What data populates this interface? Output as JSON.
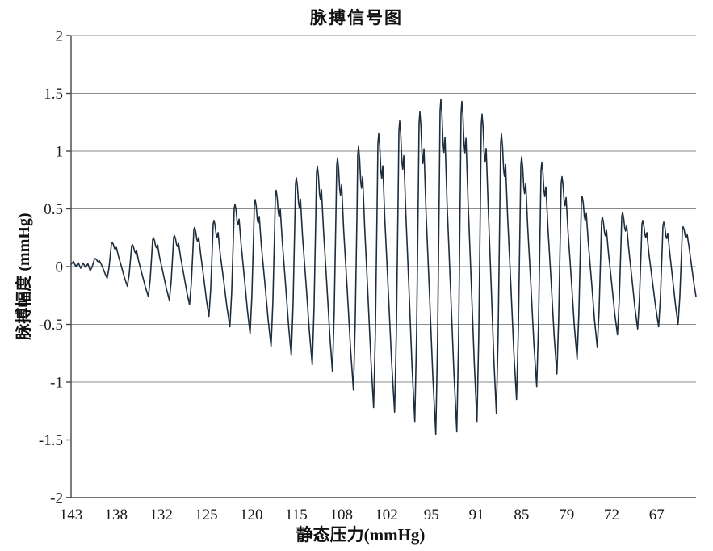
{
  "page": {
    "background": "#ffffff"
  },
  "chart_data": {
    "type": "line",
    "title": "脉搏信号图",
    "xlabel": "静态压力(mmHg)",
    "ylabel": "脉搏幅度 (mmHg)",
    "ylim": [
      -2,
      2
    ],
    "x_descending": true,
    "grid": "horizontal",
    "legend": "none",
    "y_tick_labels": [
      "2",
      "1.5",
      "1",
      "0.5",
      "0",
      "-0.5",
      "-1",
      "-1.5",
      "-2"
    ],
    "x_tick_labels": [
      "143",
      "138",
      "132",
      "125",
      "120",
      "115",
      "108",
      "102",
      "95",
      "91",
      "85",
      "79",
      "72",
      "67"
    ],
    "x_label_span_frac": 0.937,
    "colors": {
      "series": "#1e2e3e",
      "grid": "#8c8c8c",
      "axis": "#454545",
      "text": "#1a1a1a",
      "background": "#ffffff"
    },
    "signal": {
      "description": "Oscillometric pulse waveform: pulse amplitude grows then decays as static cuff pressure falls from 143 to about 64 mmHg",
      "max_amplitude_mmHg": 1.45,
      "max_amplitude_near_pressure": 95,
      "noise_values": [
        0.02,
        0.045,
        0.0,
        0.035,
        -0.015,
        0.03,
        -0.005,
        0.025,
        -0.035
      ],
      "end_value": -0.26,
      "beats": [
        {
          "x": 0.0388,
          "peak": 0.07,
          "trough": -0.1
        },
        {
          "x": 0.0659,
          "peak": 0.21,
          "trough": -0.17
        },
        {
          "x": 0.0982,
          "peak": 0.19,
          "trough": -0.26
        },
        {
          "x": 0.1318,
          "peak": 0.25,
          "trough": -0.29
        },
        {
          "x": 0.1654,
          "peak": 0.27,
          "trough": -0.33
        },
        {
          "x": 0.1977,
          "peak": 0.34,
          "trough": -0.43
        },
        {
          "x": 0.2287,
          "peak": 0.4,
          "trough": -0.52
        },
        {
          "x": 0.2623,
          "peak": 0.54,
          "trough": -0.58
        },
        {
          "x": 0.2946,
          "peak": 0.58,
          "trough": -0.69
        },
        {
          "x": 0.3282,
          "peak": 0.66,
          "trough": -0.77
        },
        {
          "x": 0.3605,
          "peak": 0.77,
          "trough": -0.85
        },
        {
          "x": 0.3941,
          "peak": 0.87,
          "trough": -0.91
        },
        {
          "x": 0.4264,
          "peak": 0.94,
          "trough": -1.07
        },
        {
          "x": 0.46,
          "peak": 1.04,
          "trough": -1.22
        },
        {
          "x": 0.4922,
          "peak": 1.15,
          "trough": -1.26
        },
        {
          "x": 0.5258,
          "peak": 1.26,
          "trough": -1.34
        },
        {
          "x": 0.5581,
          "peak": 1.34,
          "trough": -1.45
        },
        {
          "x": 0.5917,
          "peak": 1.45,
          "trough": -1.43
        },
        {
          "x": 0.6253,
          "peak": 1.43,
          "trough": -1.34
        },
        {
          "x": 0.6576,
          "peak": 1.32,
          "trough": -1.27
        },
        {
          "x": 0.6886,
          "peak": 1.15,
          "trough": -1.15
        },
        {
          "x": 0.7209,
          "peak": 0.95,
          "trough": -1.04
        },
        {
          "x": 0.7532,
          "peak": 0.9,
          "trough": -0.93
        },
        {
          "x": 0.7855,
          "peak": 0.78,
          "trough": -0.8
        },
        {
          "x": 0.8178,
          "peak": 0.61,
          "trough": -0.7
        },
        {
          "x": 0.8501,
          "peak": 0.43,
          "trough": -0.59
        },
        {
          "x": 0.8824,
          "peak": 0.47,
          "trough": -0.54
        },
        {
          "x": 0.9147,
          "peak": 0.4,
          "trough": -0.52
        },
        {
          "x": 0.9483,
          "peak": 0.385,
          "trough": -0.5
        },
        {
          "x": 0.9793,
          "peak": 0.345,
          "trough": -0.26
        }
      ]
    }
  }
}
